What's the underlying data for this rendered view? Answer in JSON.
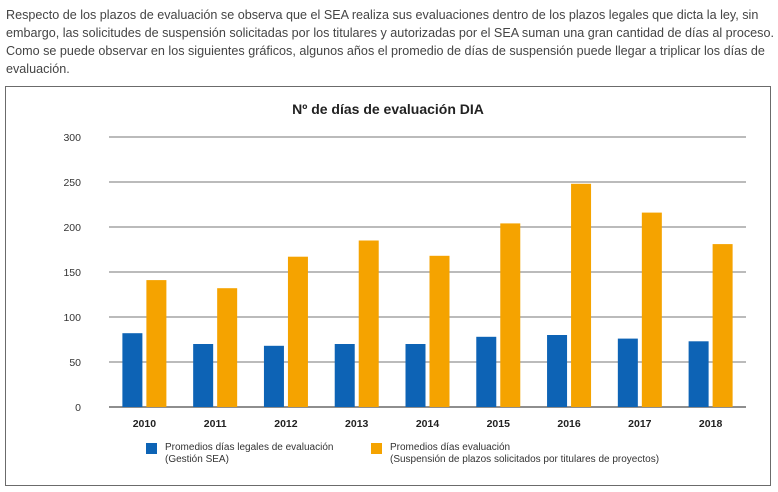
{
  "intro_text": "Respecto de los plazos de evaluación se observa que el SEA realiza sus evaluaciones dentro de los plazos legales que dicta la ley, sin embargo, las solicitudes de suspensión solicitadas por los titulares y autorizadas por el SEA suman una gran cantidad de días al proceso. Como se puede observar en los siguientes gráficos, algunos años el promedio de días de suspensión puede llegar a triplicar los días de evaluación.",
  "colors": {
    "blue": "#0d63b5",
    "orange": "#f5a300",
    "grid": "#4a4a4a"
  },
  "chart_data": {
    "type": "bar",
    "title": "Nº de días de evaluación DIA",
    "xlabel": "",
    "ylabel": "",
    "categories": [
      "2010",
      "2011",
      "2012",
      "2013",
      "2014",
      "2015",
      "2016",
      "2017",
      "2018"
    ],
    "ylim": [
      0,
      300
    ],
    "yticks": [
      0,
      50,
      100,
      150,
      200,
      250,
      300
    ],
    "grid": true,
    "legend_position": "bottom",
    "series": [
      {
        "name": "Promedios días legales de evaluación",
        "sub": "(Gestión SEA)",
        "color": "#0d63b5",
        "values": [
          82,
          70,
          68,
          70,
          70,
          78,
          80,
          76,
          73
        ]
      },
      {
        "name": "Promedios días evaluación",
        "sub": "(Suspensión de plazos solicitados por titulares de proyectos)",
        "color": "#f5a300",
        "values": [
          141,
          132,
          167,
          185,
          168,
          204,
          248,
          216,
          181
        ]
      }
    ]
  }
}
